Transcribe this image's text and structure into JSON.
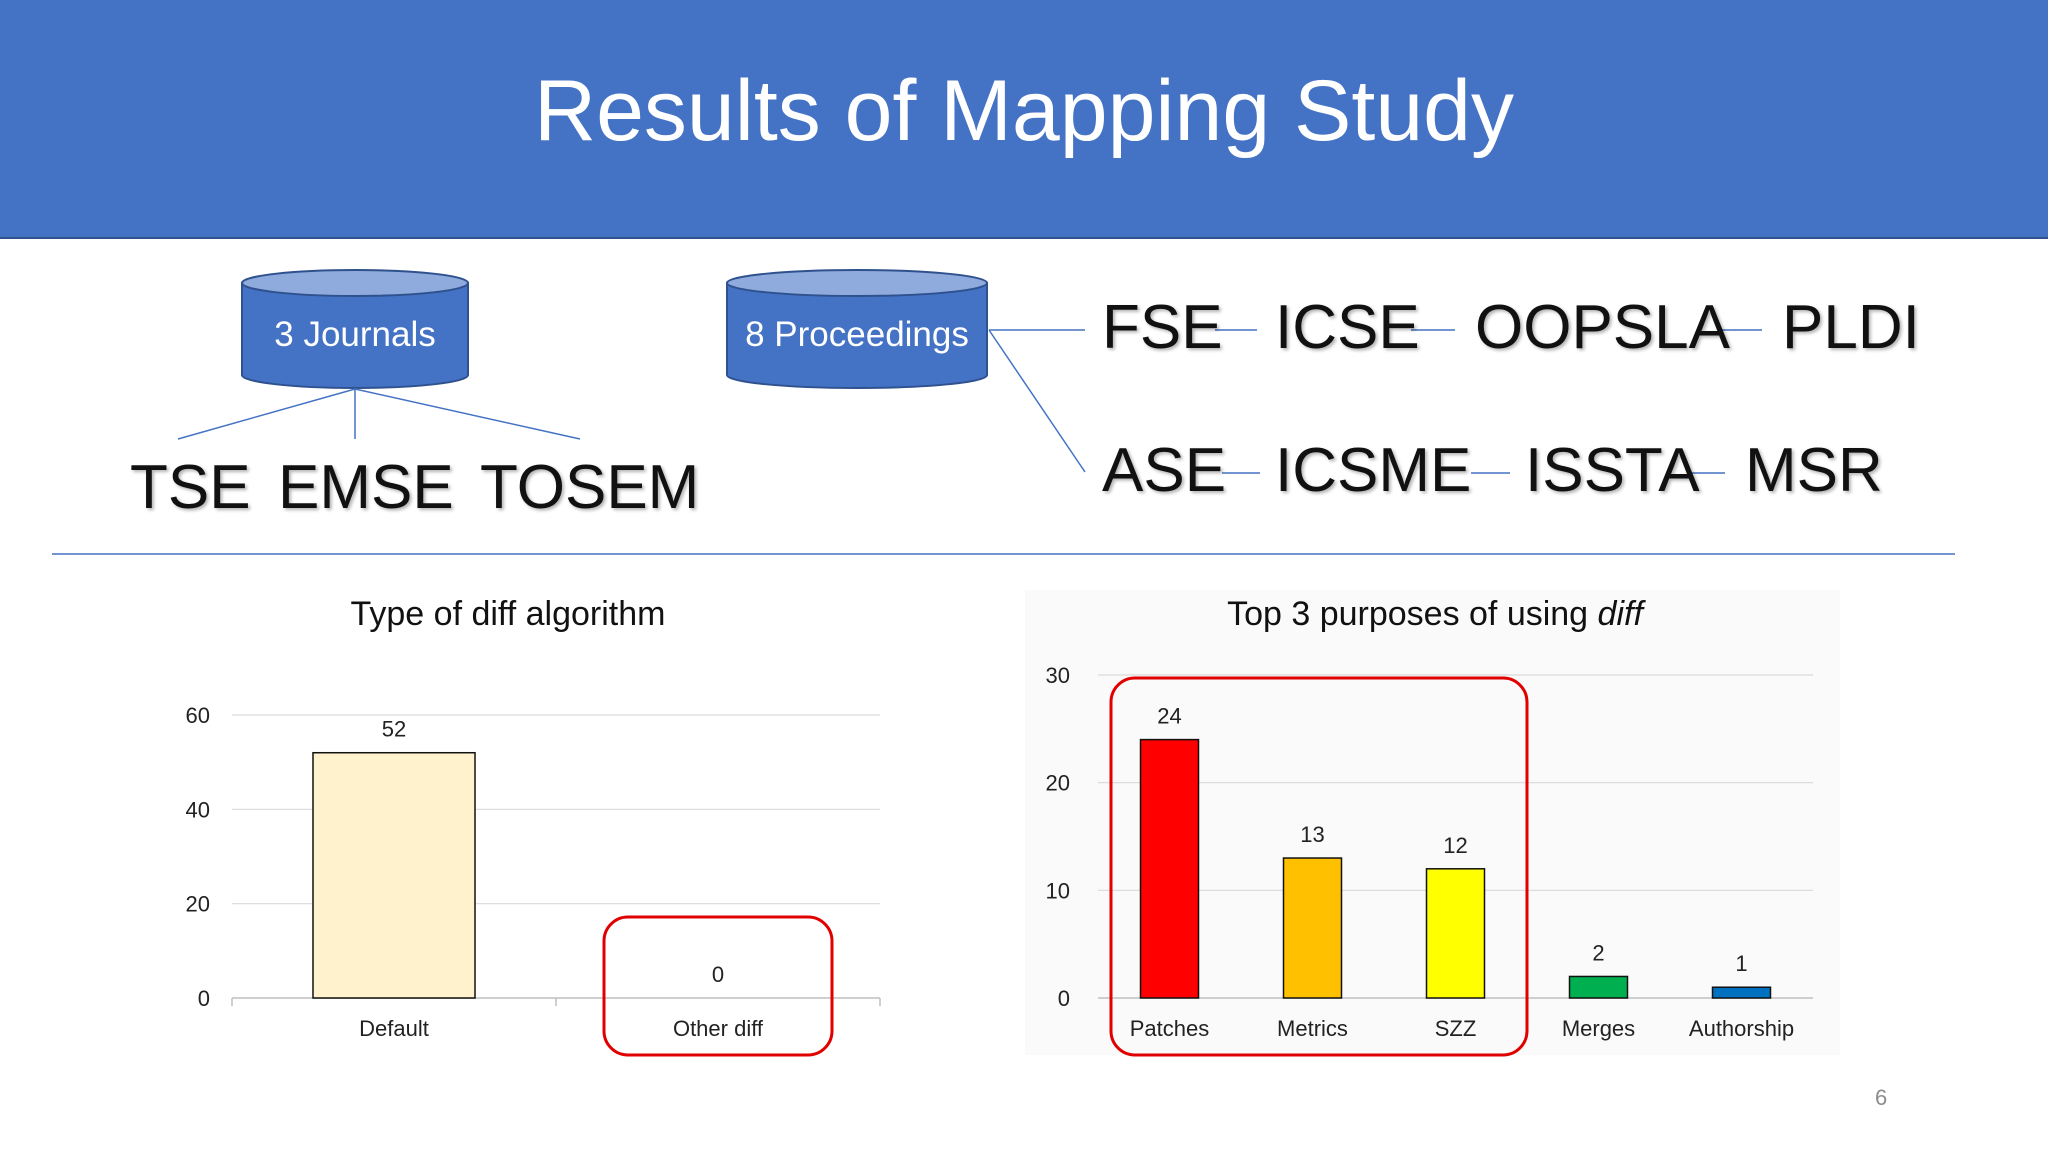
{
  "slide": {
    "title": "Results of Mapping Study",
    "page_number": "6"
  },
  "databases": {
    "journals_label": "3 Journals",
    "proceedings_label": "8 Proceedings"
  },
  "journals": [
    "TSE",
    "EMSE",
    "TOSEM"
  ],
  "proceedings_row1": [
    "FSE",
    "ICSE",
    "OOPSLA",
    "PLDI"
  ],
  "proceedings_row2": [
    "ASE",
    "ICSME",
    "ISSTA",
    "MSR"
  ],
  "colors": {
    "header": "#4472c4",
    "highlight_box": "#e00000"
  },
  "chart_data": [
    {
      "type": "bar",
      "title": "Type of diff algorithm",
      "categories": [
        "Default",
        "Other diff"
      ],
      "values": [
        52,
        0
      ],
      "data_labels": [
        "52",
        "0"
      ],
      "colors": [
        "#fff2cc",
        "#fff2cc"
      ],
      "ylim": [
        0,
        60
      ],
      "yticks": [
        0,
        20,
        40,
        60
      ],
      "xlabel": "",
      "ylabel": "",
      "grid": true,
      "highlight": [
        "Other diff"
      ]
    },
    {
      "type": "bar",
      "title_parts": [
        "Top 3 purposes of using ",
        "diff"
      ],
      "categories": [
        "Patches",
        "Metrics",
        "SZZ",
        "Merges",
        "Authorship"
      ],
      "values": [
        24,
        13,
        12,
        2,
        1
      ],
      "data_labels": [
        "24",
        "13",
        "12",
        "2",
        "1"
      ],
      "colors": [
        "#ff0000",
        "#ffc000",
        "#ffff00",
        "#00b050",
        "#0070c0"
      ],
      "ylim": [
        0,
        30
      ],
      "yticks": [
        0,
        10,
        20,
        30
      ],
      "xlabel": "",
      "ylabel": "",
      "grid": true,
      "highlight": [
        "Patches",
        "Metrics",
        "SZZ"
      ]
    }
  ]
}
